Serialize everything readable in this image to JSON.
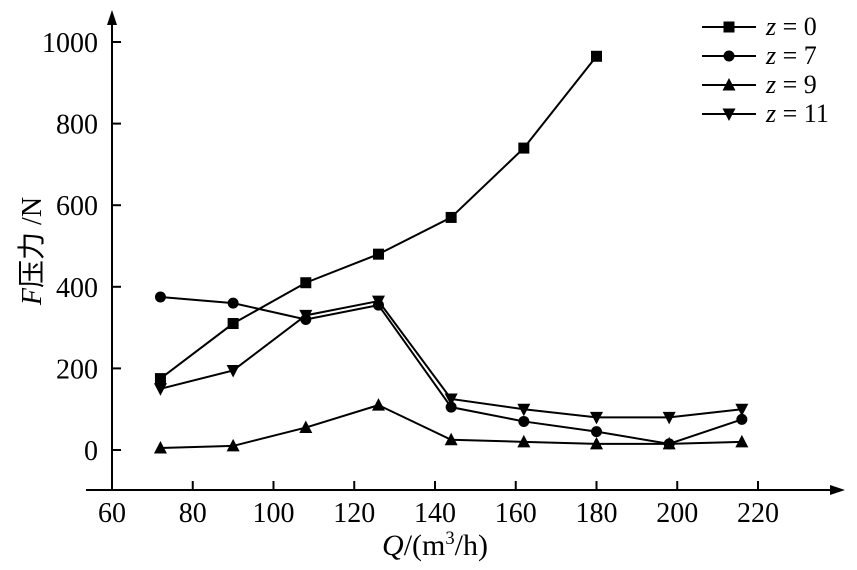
{
  "chart_data": {
    "type": "line",
    "title": "",
    "xlabel": {
      "var": "Q",
      "pre": "/(m",
      "sup": "3",
      "post": "/h)"
    },
    "ylabel": {
      "var": "F",
      "cjk": "压力",
      "post": " /N"
    },
    "xlim": [
      60,
      232
    ],
    "ylim": [
      -100,
      1080
    ],
    "xticks": [
      60,
      80,
      100,
      120,
      140,
      160,
      180,
      200,
      220
    ],
    "yticks": [
      0,
      200,
      400,
      600,
      800,
      1000
    ],
    "grid": false,
    "legend_position": "top-right",
    "line_color": "#000000",
    "series": [
      {
        "name_var": "z",
        "name_rest": " = 0",
        "marker": "square",
        "x": [
          72,
          90,
          108,
          126,
          144,
          162,
          180
        ],
        "y": [
          175,
          310,
          410,
          480,
          570,
          740,
          965
        ]
      },
      {
        "name_var": "z",
        "name_rest": " = 7",
        "marker": "circle",
        "x": [
          72,
          90,
          108,
          126,
          144,
          162,
          180,
          198,
          216
        ],
        "y": [
          375,
          360,
          320,
          355,
          105,
          70,
          45,
          15,
          75
        ]
      },
      {
        "name_var": "z",
        "name_rest": " = 9",
        "marker": "triangle-up",
        "x": [
          72,
          90,
          108,
          126,
          144,
          162,
          180,
          198,
          216
        ],
        "y": [
          5,
          10,
          55,
          110,
          25,
          20,
          15,
          15,
          20
        ]
      },
      {
        "name_var": "z",
        "name_rest": " = 11",
        "marker": "triangle-down",
        "x": [
          72,
          90,
          108,
          126,
          144,
          162,
          180,
          198,
          216
        ],
        "y": [
          150,
          195,
          330,
          365,
          125,
          100,
          80,
          80,
          100
        ]
      }
    ]
  }
}
